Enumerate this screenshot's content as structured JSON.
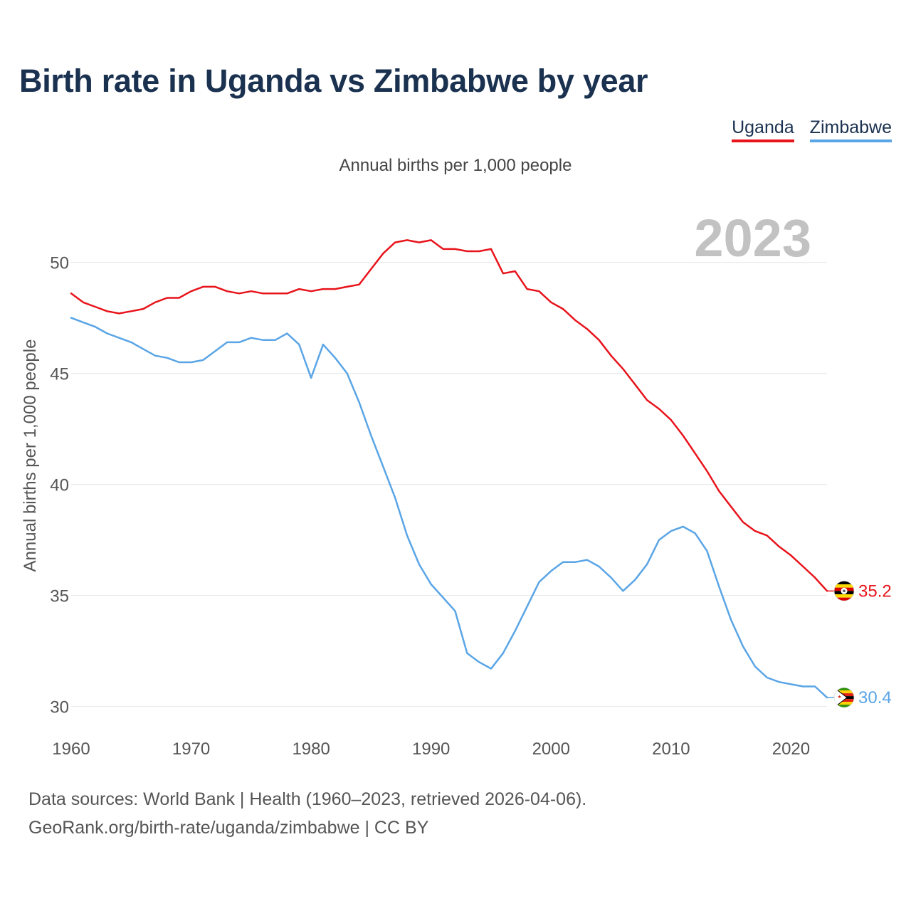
{
  "title": "Birth rate in Uganda vs Zimbabwe by year",
  "chart_data": {
    "type": "line",
    "title": "Birth rate in Uganda vs Zimbabwe by year",
    "subtitle": "Annual births per 1,000 people",
    "xlabel": "",
    "ylabel": "Annual births per 1,000 people",
    "year_label": "2023",
    "xlim": [
      1960,
      2023
    ],
    "ylim": [
      28.8,
      52.2
    ],
    "x_ticks": [
      1960,
      1970,
      1980,
      1990,
      2000,
      2010,
      2020
    ],
    "y_ticks": [
      30,
      35,
      40,
      45,
      50
    ],
    "grid": true,
    "legend": "top-right",
    "x": [
      1960,
      1961,
      1962,
      1963,
      1964,
      1965,
      1966,
      1967,
      1968,
      1969,
      1970,
      1971,
      1972,
      1973,
      1974,
      1975,
      1976,
      1977,
      1978,
      1979,
      1980,
      1981,
      1982,
      1983,
      1984,
      1985,
      1986,
      1987,
      1988,
      1989,
      1990,
      1991,
      1992,
      1993,
      1994,
      1995,
      1996,
      1997,
      1998,
      1999,
      2000,
      2001,
      2002,
      2003,
      2004,
      2005,
      2006,
      2007,
      2008,
      2009,
      2010,
      2011,
      2012,
      2013,
      2014,
      2015,
      2016,
      2017,
      2018,
      2019,
      2020,
      2021,
      2022,
      2023
    ],
    "series": [
      {
        "name": "Uganda",
        "color": "#e8141c",
        "end_label": "35.2",
        "values": [
          48.6,
          48.2,
          48.0,
          47.8,
          47.7,
          47.8,
          47.9,
          48.2,
          48.4,
          48.4,
          48.7,
          48.9,
          48.9,
          48.7,
          48.6,
          48.7,
          48.6,
          48.6,
          48.6,
          48.8,
          48.7,
          48.8,
          48.8,
          48.9,
          49.0,
          49.7,
          50.4,
          50.9,
          51.0,
          50.9,
          51.0,
          50.6,
          50.6,
          50.5,
          50.5,
          50.6,
          49.5,
          49.6,
          48.8,
          48.7,
          48.2,
          47.9,
          47.4,
          47.0,
          46.5,
          45.8,
          45.2,
          44.5,
          43.8,
          43.4,
          42.9,
          42.2,
          41.4,
          40.6,
          39.7,
          39.0,
          38.3,
          37.9,
          37.7,
          37.2,
          36.8,
          36.3,
          35.8,
          35.2
        ]
      },
      {
        "name": "Zimbabwe",
        "color": "#5aa5e6",
        "end_label": "30.4",
        "values": [
          47.5,
          47.3,
          47.1,
          46.8,
          46.6,
          46.4,
          46.1,
          45.8,
          45.7,
          45.5,
          45.5,
          45.6,
          46.0,
          46.4,
          46.4,
          46.6,
          46.5,
          46.5,
          46.8,
          46.3,
          44.8,
          46.3,
          45.7,
          45.0,
          43.7,
          42.2,
          40.8,
          39.4,
          37.7,
          36.4,
          35.5,
          34.9,
          34.3,
          32.4,
          32.0,
          31.7,
          32.4,
          33.4,
          34.5,
          35.6,
          36.1,
          36.5,
          36.5,
          36.6,
          36.3,
          35.8,
          35.2,
          35.7,
          36.4,
          37.5,
          37.9,
          38.1,
          37.8,
          37.0,
          35.4,
          33.9,
          32.7,
          31.8,
          31.3,
          31.1,
          31.0,
          30.9,
          30.9,
          30.4
        ]
      }
    ]
  },
  "source": {
    "line1": "Data sources: World Bank | Health (1960–2023, retrieved 2026-04-06).",
    "line2": "GeoRank.org/birth-rate/uganda/zimbabwe | CC BY"
  }
}
